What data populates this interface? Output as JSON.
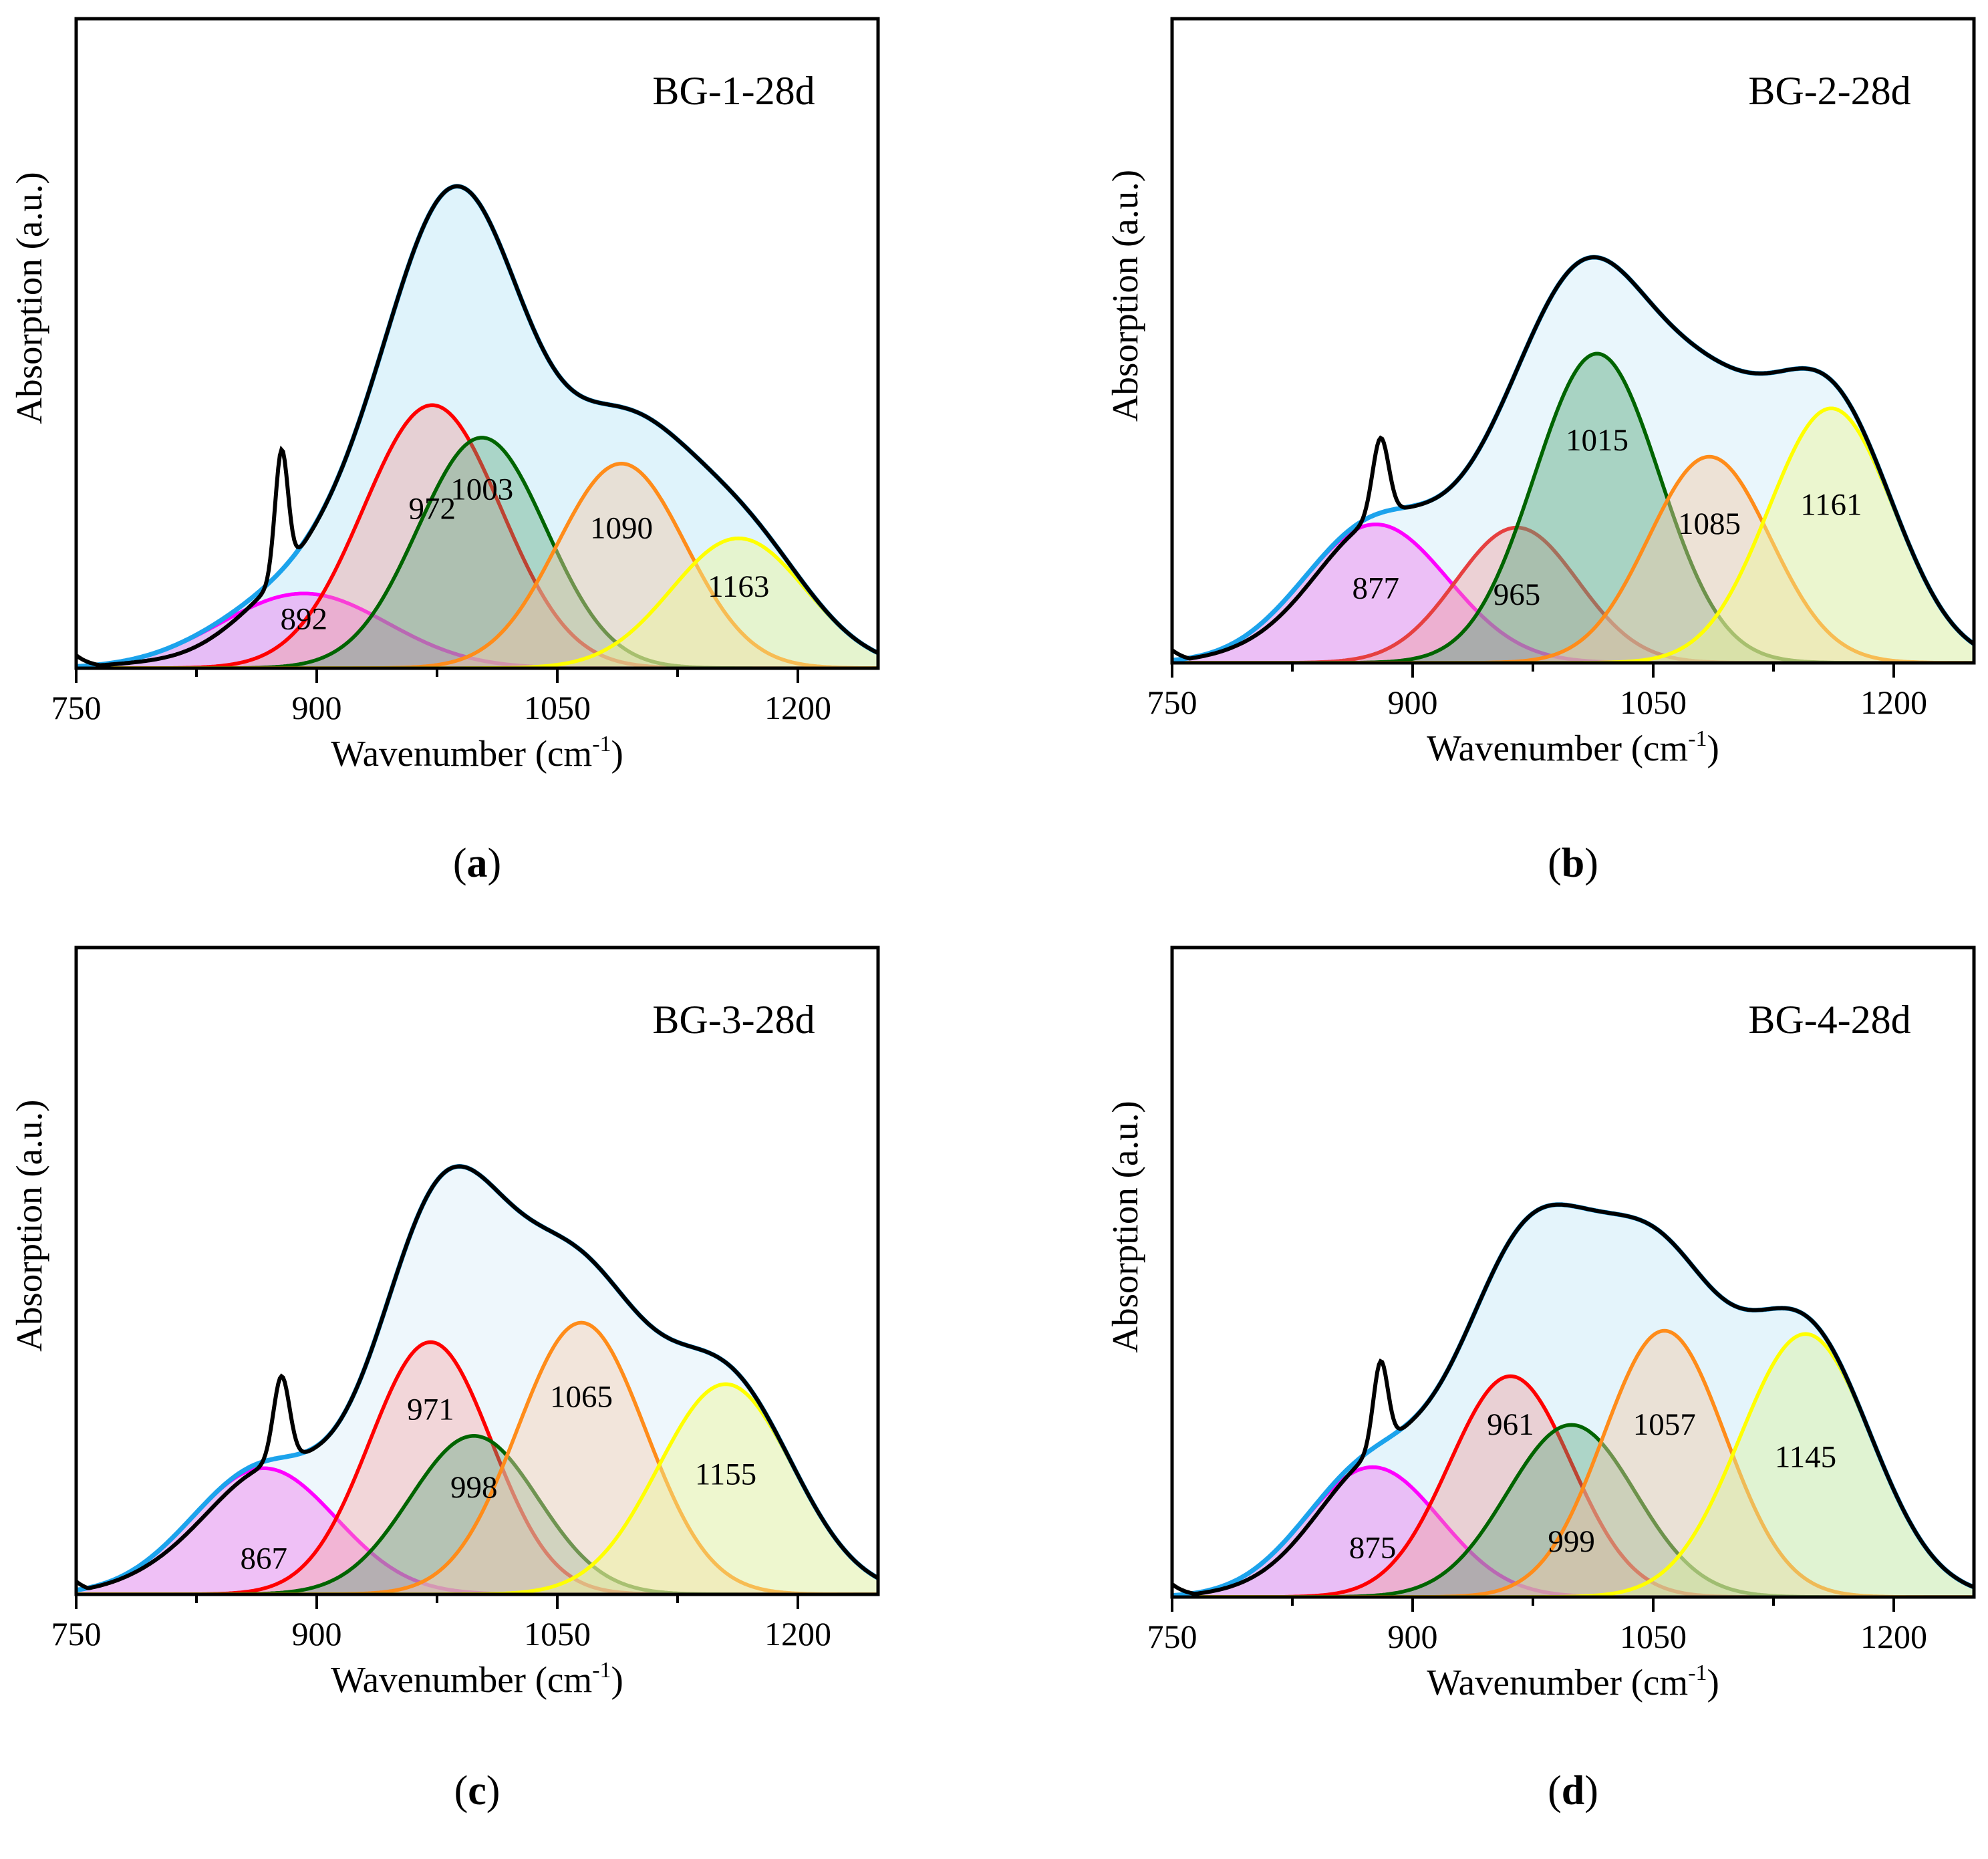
{
  "chart_data": [
    {
      "type": "area",
      "panel": "a",
      "caption": "a",
      "sample_label": "BG-1-28d",
      "xlabel": "Wavenumber (cm",
      "xlabel_sup": "-1",
      "xlabel_end": ")",
      "ylabel": "Absorption (a.u.)",
      "xlim": [
        750,
        1250
      ],
      "ylim": [
        0,
        1.0
      ],
      "x_ticks": [
        750,
        900,
        1050,
        1200
      ],
      "peaks": [
        {
          "center": 892,
          "label": "892",
          "height": 0.115,
          "width": 52,
          "color": "#ff00ff",
          "fill": "#f07cf0",
          "opacity": 0.45
        },
        {
          "center": 972,
          "label": "972",
          "height": 0.405,
          "width": 43,
          "color": "#ff0000",
          "fill": "#f19a9a",
          "opacity": 0.4
        },
        {
          "center": 1003,
          "label": "1003",
          "height": 0.355,
          "width": 40,
          "color": "#006400",
          "fill": "#59a87e",
          "opacity": 0.4
        },
        {
          "center": 1090,
          "label": "1090",
          "height": 0.315,
          "width": 40,
          "color": "#ff8c1a",
          "fill": "#f2c9a8",
          "opacity": 0.45
        },
        {
          "center": 1163,
          "label": "1163",
          "height": 0.2,
          "width": 42,
          "color": "#ffff00",
          "fill": "#eef79a",
          "opacity": 0.45
        }
      ],
      "peak_label_y": [
        0.06,
        0.23,
        0.26,
        0.2,
        0.11
      ],
      "sharp_peak": {
        "center": 878,
        "height": 0.19,
        "width": 4
      },
      "fit_color": "#1ca3ec",
      "envelope_fill": "#dff3fb",
      "exp_color": "#000000",
      "grid": false
    },
    {
      "type": "area",
      "panel": "b",
      "caption": "b",
      "sample_label": "BG-2-28d",
      "xlabel": "Wavenumber (cm",
      "xlabel_sup": "-1",
      "xlabel_end": ")",
      "ylabel": "Absorption (a.u.)",
      "xlim": [
        750,
        1250
      ],
      "ylim": [
        0,
        1.0
      ],
      "x_ticks": [
        750,
        900,
        1050,
        1200
      ],
      "peaks": [
        {
          "center": 877,
          "label": "877",
          "height": 0.215,
          "width": 45,
          "color": "#ff00ff",
          "fill": "#f07cf0",
          "opacity": 0.45
        },
        {
          "center": 965,
          "label": "965",
          "height": 0.21,
          "width": 38,
          "color": "#e64040",
          "fill": "#f19a9a",
          "opacity": 0.4
        },
        {
          "center": 1015,
          "label": "1015",
          "height": 0.48,
          "width": 39,
          "color": "#006400",
          "fill": "#59a87e",
          "opacity": 0.45
        },
        {
          "center": 1085,
          "label": "1085",
          "height": 0.32,
          "width": 38,
          "color": "#ff8c1a",
          "fill": "#f2c9a8",
          "opacity": 0.45
        },
        {
          "center": 1161,
          "label": "1161",
          "height": 0.395,
          "width": 39,
          "color": "#ffff00",
          "fill": "#eef79a",
          "opacity": 0.45
        }
      ],
      "peak_label_y": [
        0.1,
        0.09,
        0.33,
        0.2,
        0.23
      ],
      "sharp_peak": {
        "center": 880,
        "height": 0.12,
        "width": 5
      },
      "fit_color": "#1ca3ec",
      "envelope_fill": "#e9f6fc",
      "exp_color": "#000000",
      "grid": false
    },
    {
      "type": "area",
      "panel": "c",
      "caption": "c",
      "sample_label": "BG-3-28d",
      "xlabel": "Wavenumber (cm",
      "xlabel_sup": "-1",
      "xlabel_end": ")",
      "ylabel": "Absorption (a.u.)",
      "xlim": [
        750,
        1250
      ],
      "ylim": [
        0,
        1.0
      ],
      "x_ticks": [
        750,
        900,
        1050,
        1200
      ],
      "peaks": [
        {
          "center": 867,
          "label": "867",
          "height": 0.195,
          "width": 45,
          "color": "#ff00ff",
          "fill": "#f07cf0",
          "opacity": 0.45
        },
        {
          "center": 971,
          "label": "971",
          "height": 0.39,
          "width": 38,
          "color": "#ff0000",
          "fill": "#f7a5a5",
          "opacity": 0.4
        },
        {
          "center": 998,
          "label": "998",
          "height": 0.245,
          "width": 40,
          "color": "#006400",
          "fill": "#59a87e",
          "opacity": 0.4
        },
        {
          "center": 1065,
          "label": "1065",
          "height": 0.42,
          "width": 40,
          "color": "#ff8c1a",
          "fill": "#f6cfb3",
          "opacity": 0.45
        },
        {
          "center": 1155,
          "label": "1155",
          "height": 0.325,
          "width": 42,
          "color": "#ffff00",
          "fill": "#eef79a",
          "opacity": 0.45
        }
      ],
      "peak_label_y": [
        0.04,
        0.27,
        0.15,
        0.29,
        0.17
      ],
      "sharp_peak": {
        "center": 878,
        "height": 0.13,
        "width": 5
      },
      "fit_color": "#1ca3ec",
      "envelope_fill": "#eef7fc",
      "exp_color": "#000000",
      "grid": false
    },
    {
      "type": "area",
      "panel": "d",
      "caption": "d",
      "sample_label": "BG-4-28d",
      "xlabel": "Wavenumber (cm",
      "xlabel_sup": "-1",
      "xlabel_end": ")",
      "ylabel": "Absorption (a.u.)",
      "xlim": [
        750,
        1250
      ],
      "ylim": [
        0,
        1.0
      ],
      "x_ticks": [
        750,
        900,
        1050,
        1200
      ],
      "peaks": [
        {
          "center": 875,
          "label": "875",
          "height": 0.2,
          "width": 42,
          "color": "#ff00ff",
          "fill": "#f07cf0",
          "opacity": 0.45
        },
        {
          "center": 961,
          "label": "961",
          "height": 0.34,
          "width": 38,
          "color": "#ff0000",
          "fill": "#f19a9a",
          "opacity": 0.4
        },
        {
          "center": 999,
          "label": "999",
          "height": 0.265,
          "width": 40,
          "color": "#006400",
          "fill": "#59a87e",
          "opacity": 0.4
        },
        {
          "center": 1057,
          "label": "1057",
          "height": 0.41,
          "width": 38,
          "color": "#ff8c1a",
          "fill": "#f2c9a8",
          "opacity": 0.45
        },
        {
          "center": 1145,
          "label": "1145",
          "height": 0.405,
          "width": 41,
          "color": "#ffff00",
          "fill": "#dcf2a0",
          "opacity": 0.45
        }
      ],
      "peak_label_y": [
        0.06,
        0.25,
        0.07,
        0.25,
        0.2
      ],
      "sharp_peak": {
        "center": 880,
        "height": 0.13,
        "width": 4.5
      },
      "fit_color": "#1ca3ec",
      "envelope_fill": "#e4f4fb",
      "exp_color": "#000000",
      "grid": false
    }
  ]
}
